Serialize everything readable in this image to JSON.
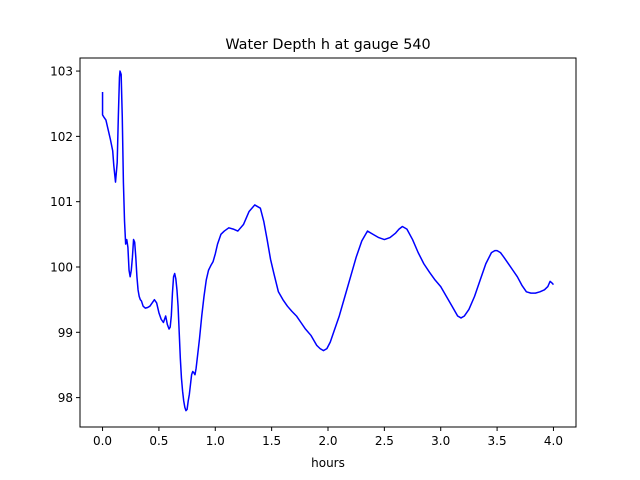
{
  "chart_data": {
    "type": "line",
    "title": "Water Depth h at gauge 540",
    "xlabel": "hours",
    "ylabel": "",
    "xlim": [
      -0.2,
      4.2
    ],
    "ylim": [
      97.55,
      103.2
    ],
    "xticks": [
      0.0,
      0.5,
      1.0,
      1.5,
      2.0,
      2.5,
      3.0,
      3.5,
      4.0
    ],
    "xtick_labels": [
      "0.0",
      "0.5",
      "1.0",
      "1.5",
      "2.0",
      "2.5",
      "3.0",
      "3.5",
      "4.0"
    ],
    "yticks": [
      98,
      99,
      100,
      101,
      102,
      103
    ],
    "ytick_labels": [
      "98",
      "99",
      "100",
      "101",
      "102",
      "103"
    ],
    "grid": false,
    "series": [
      {
        "color": "#0000ff",
        "x": [
          0.0,
          0.0,
          0.01,
          0.03,
          0.05,
          0.07,
          0.09,
          0.1,
          0.115,
          0.13,
          0.14,
          0.15,
          0.155,
          0.165,
          0.175,
          0.185,
          0.195,
          0.205,
          0.215,
          0.225,
          0.235,
          0.245,
          0.255,
          0.265,
          0.275,
          0.285,
          0.295,
          0.305,
          0.315,
          0.325,
          0.335,
          0.345,
          0.36,
          0.38,
          0.4,
          0.42,
          0.44,
          0.46,
          0.48,
          0.5,
          0.52,
          0.54,
          0.56,
          0.575,
          0.59,
          0.6,
          0.61,
          0.62,
          0.63,
          0.64,
          0.65,
          0.66,
          0.67,
          0.68,
          0.69,
          0.7,
          0.71,
          0.72,
          0.73,
          0.74,
          0.75,
          0.76,
          0.77,
          0.78,
          0.79,
          0.8,
          0.81,
          0.82,
          0.83,
          0.84,
          0.86,
          0.88,
          0.9,
          0.92,
          0.94,
          0.96,
          0.98,
          1.0,
          1.02,
          1.05,
          1.08,
          1.12,
          1.16,
          1.2,
          1.25,
          1.3,
          1.35,
          1.4,
          1.43,
          1.46,
          1.49,
          1.52,
          1.56,
          1.6,
          1.64,
          1.68,
          1.72,
          1.76,
          1.8,
          1.85,
          1.9,
          1.93,
          1.96,
          1.99,
          2.02,
          2.05,
          2.1,
          2.15,
          2.2,
          2.25,
          2.3,
          2.35,
          2.4,
          2.45,
          2.5,
          2.55,
          2.6,
          2.63,
          2.66,
          2.7,
          2.75,
          2.8,
          2.85,
          2.9,
          2.95,
          3.0,
          3.05,
          3.1,
          3.15,
          3.18,
          3.21,
          3.25,
          3.3,
          3.35,
          3.4,
          3.45,
          3.48,
          3.5,
          3.53,
          3.56,
          3.6,
          3.64,
          3.68,
          3.72,
          3.76,
          3.8,
          3.84,
          3.88,
          3.92,
          3.95,
          3.97,
          3.99,
          4.0
        ],
        "y": [
          102.68,
          102.33,
          102.3,
          102.25,
          102.1,
          101.95,
          101.78,
          101.55,
          101.3,
          101.6,
          102.3,
          102.9,
          103.0,
          102.95,
          102.3,
          101.3,
          100.7,
          100.35,
          100.42,
          100.3,
          99.95,
          99.85,
          99.95,
          100.15,
          100.42,
          100.38,
          100.15,
          99.85,
          99.65,
          99.55,
          99.5,
          99.48,
          99.4,
          99.37,
          99.38,
          99.4,
          99.45,
          99.5,
          99.45,
          99.3,
          99.2,
          99.15,
          99.25,
          99.12,
          99.05,
          99.08,
          99.25,
          99.6,
          99.85,
          99.9,
          99.82,
          99.65,
          99.4,
          99.0,
          98.6,
          98.3,
          98.1,
          97.95,
          97.85,
          97.8,
          97.82,
          97.95,
          98.05,
          98.2,
          98.35,
          98.4,
          98.38,
          98.35,
          98.45,
          98.6,
          98.9,
          99.25,
          99.55,
          99.8,
          99.95,
          100.02,
          100.08,
          100.2,
          100.35,
          100.5,
          100.55,
          100.6,
          100.58,
          100.55,
          100.65,
          100.85,
          100.95,
          100.9,
          100.7,
          100.42,
          100.12,
          99.9,
          99.62,
          99.5,
          99.4,
          99.32,
          99.25,
          99.15,
          99.05,
          98.95,
          98.8,
          98.75,
          98.72,
          98.75,
          98.85,
          99.0,
          99.25,
          99.55,
          99.85,
          100.15,
          100.4,
          100.55,
          100.5,
          100.45,
          100.42,
          100.45,
          100.52,
          100.58,
          100.62,
          100.58,
          100.42,
          100.22,
          100.05,
          99.92,
          99.8,
          99.7,
          99.55,
          99.4,
          99.25,
          99.22,
          99.25,
          99.35,
          99.55,
          99.8,
          100.05,
          100.22,
          100.25,
          100.25,
          100.22,
          100.15,
          100.05,
          99.95,
          99.85,
          99.72,
          99.62,
          99.6,
          99.6,
          99.62,
          99.65,
          99.7,
          99.78,
          99.75,
          99.73
        ]
      }
    ]
  }
}
